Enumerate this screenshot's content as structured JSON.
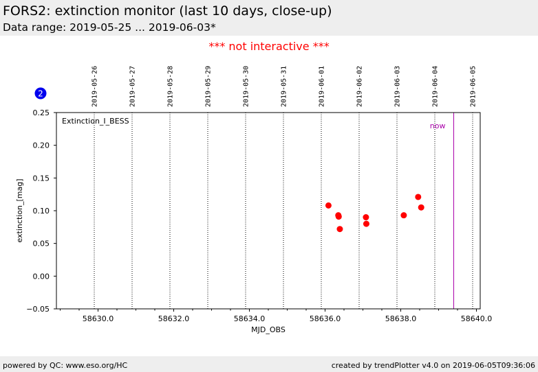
{
  "header": {
    "title": "FORS2: extinction monitor (last 10 days, close-up)",
    "subtitle": "Data range: 2019-05-25 ... 2019-06-03*"
  },
  "notice": "*** not interactive ***",
  "badge": "2",
  "footer": {
    "left": "powered by QC: www.eso.org/HC",
    "right": "created by trendPlotter v4.0 on 2019-06-05T09:36:06"
  },
  "colors": {
    "points": "#ff0000",
    "now_line": "#aa00aa",
    "badge": "#0000ee",
    "notice": "#ff0000"
  },
  "chart_data": {
    "type": "scatter",
    "title": "",
    "xlabel": "MJD_OBS",
    "ylabel": "extinction_[mag]",
    "panel_label": "Extinction_I_BESS",
    "xlim": [
      58628.9,
      58640.1
    ],
    "ylim": [
      -0.05,
      0.25
    ],
    "x_ticks": [
      58630.0,
      58632.0,
      58634.0,
      58636.0,
      58638.0,
      58640.0
    ],
    "x_tick_labels": [
      "58630.0",
      "58632.0",
      "58634.0",
      "58636.0",
      "58638.0",
      "58640.0"
    ],
    "y_ticks": [
      -0.05,
      0.0,
      0.05,
      0.1,
      0.15,
      0.2,
      0.25
    ],
    "y_tick_labels": [
      "−0.05",
      "0.00",
      "0.05",
      "0.10",
      "0.15",
      "0.20",
      "0.25"
    ],
    "date_marks": [
      {
        "x": 58629.9,
        "label": "2019-05-26"
      },
      {
        "x": 58630.9,
        "label": "2019-05-27"
      },
      {
        "x": 58631.9,
        "label": "2019-05-28"
      },
      {
        "x": 58632.9,
        "label": "2019-05-29"
      },
      {
        "x": 58633.9,
        "label": "2019-05-30"
      },
      {
        "x": 58634.9,
        "label": "2019-05-31"
      },
      {
        "x": 58635.9,
        "label": "2019-06-01"
      },
      {
        "x": 58636.9,
        "label": "2019-06-02"
      },
      {
        "x": 58637.9,
        "label": "2019-06-03"
      },
      {
        "x": 58638.9,
        "label": "2019-06-04"
      },
      {
        "x": 58639.9,
        "label": "2019-06-05"
      }
    ],
    "now": {
      "x": 58639.4,
      "label": "now"
    },
    "grid": false,
    "points": [
      {
        "x": 58636.09,
        "y": 0.108
      },
      {
        "x": 58636.35,
        "y": 0.093
      },
      {
        "x": 58636.36,
        "y": 0.091
      },
      {
        "x": 58636.39,
        "y": 0.072
      },
      {
        "x": 58637.08,
        "y": 0.09
      },
      {
        "x": 58637.09,
        "y": 0.08
      },
      {
        "x": 58638.08,
        "y": 0.093
      },
      {
        "x": 58638.46,
        "y": 0.121
      },
      {
        "x": 58638.54,
        "y": 0.105
      }
    ]
  }
}
